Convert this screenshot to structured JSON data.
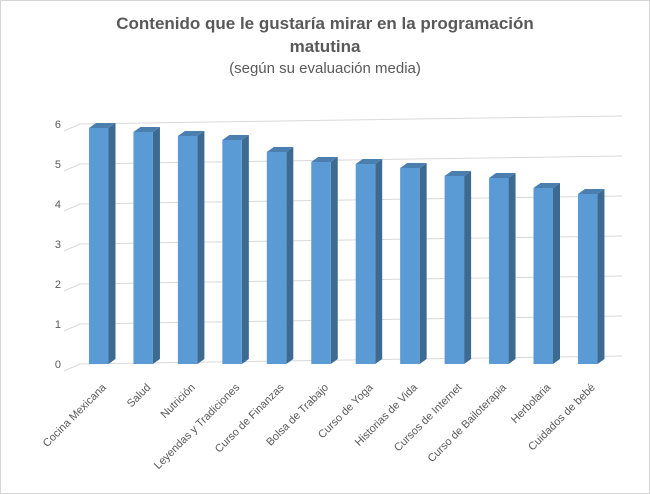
{
  "window": {
    "background_color": "#ffffff",
    "border_color": "#d4d4d4"
  },
  "chart_data": {
    "type": "bar",
    "style": "3d-column",
    "title": "Contenido que le gustaría mirar en la programación matutina",
    "subtitle": "(según su evaluación media)",
    "categories": [
      "Cocina Mexicana",
      "Salud",
      "Nutrición",
      "Leyendas y Tradiciones",
      "Curso de Finanzas",
      "Bolsa de Trabajo",
      "Curso de Yoga",
      "Historias de Vida",
      "Cursos de Internet",
      "Curso de Bailoterapia",
      "Herbolaria",
      "Cuidados de bebé"
    ],
    "values": [
      5.9,
      5.8,
      5.7,
      5.6,
      5.3,
      5.05,
      5.0,
      4.9,
      4.7,
      4.65,
      4.4,
      4.25
    ],
    "xlabel": "",
    "ylabel": "",
    "ylim": [
      0,
      6
    ],
    "yticks": [
      0,
      1,
      2,
      3,
      4,
      5,
      6
    ],
    "grid": true,
    "legend_position": "none",
    "colors": {
      "bar_front": "#5B9BD5",
      "bar_top": "#4A7FB0",
      "bar_side": "#3D6A91",
      "gridline": "#D9D9D9",
      "text": "#595959"
    }
  }
}
